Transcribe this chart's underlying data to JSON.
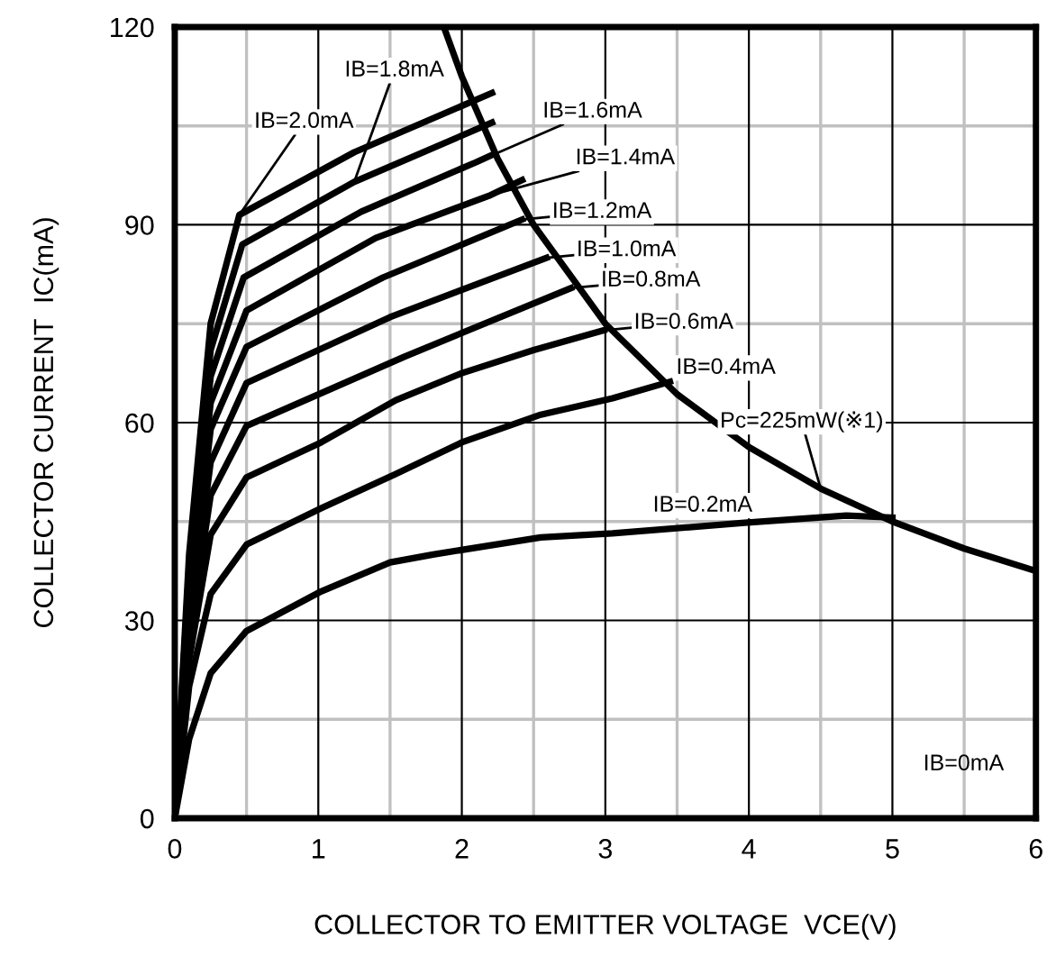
{
  "chart_data": {
    "type": "line",
    "xlabel": "COLLECTOR TO EMITTER VOLTAGE  VCE(V)",
    "ylabel": "COLLECTOR CURRENT  IC(mA)",
    "xlim": [
      0,
      6
    ],
    "xticks": [
      0,
      1,
      2,
      3,
      4,
      5,
      6
    ],
    "ylim": [
      0,
      120
    ],
    "yticks": [
      0,
      30,
      60,
      90,
      120
    ],
    "annotations": [
      "IB=0mA"
    ],
    "grid": true,
    "legend": false,
    "marker": "none",
    "line_style": "solid",
    "series": [
      {
        "name": "IB=2.0mA",
        "color": "#000000",
        "x": [
          0,
          0.1,
          0.25,
          0.45,
          1.25,
          2.21
        ],
        "values": [
          0,
          40,
          75,
          91.5,
          101,
          110
        ]
      },
      {
        "name": "IB=1.8mA",
        "color": "#000000",
        "x": [
          0,
          0.1,
          0.25,
          0.47,
          1.25,
          2.21
        ],
        "values": [
          0,
          38,
          71,
          87,
          96.5,
          105.5
        ]
      },
      {
        "name": "IB=1.6mA",
        "color": "#000000",
        "x": [
          0,
          0.1,
          0.25,
          0.48,
          1.3,
          2.1,
          2.21
        ],
        "values": [
          0,
          36,
          67,
          82,
          92,
          99.5,
          100.6
        ]
      },
      {
        "name": "IB=1.4mA",
        "color": "#000000",
        "x": [
          0,
          0.1,
          0.25,
          0.5,
          1.4,
          2.2,
          2.42
        ],
        "values": [
          0,
          34,
          63,
          77,
          88,
          94.5,
          96.8
        ]
      },
      {
        "name": "IB=1.2mA",
        "color": "#000000",
        "x": [
          0,
          0.1,
          0.25,
          0.5,
          1.45,
          2.42
        ],
        "values": [
          0,
          31,
          59,
          71.5,
          82,
          90.8
        ]
      },
      {
        "name": "IB=1.0mA",
        "color": "#000000",
        "x": [
          0,
          0.1,
          0.25,
          0.5,
          1.5,
          2.59
        ],
        "values": [
          0,
          29,
          54,
          66,
          76,
          85
        ]
      },
      {
        "name": "IB=0.8mA",
        "color": "#000000",
        "x": [
          0,
          0.1,
          0.25,
          0.5,
          1.6,
          2.76
        ],
        "values": [
          0,
          27,
          49,
          59.5,
          70,
          80.4
        ]
      },
      {
        "name": "IB=0.6mA",
        "color": "#000000",
        "x": [
          0,
          0.1,
          0.25,
          0.5,
          1.02,
          1.54,
          2.0,
          2.5,
          2.99
        ],
        "values": [
          0,
          24,
          43,
          51.7,
          57,
          63.4,
          67.5,
          71,
          74
        ]
      },
      {
        "name": "IB=0.4mA",
        "color": "#000000",
        "x": [
          0,
          0.1,
          0.25,
          0.5,
          1.02,
          1.54,
          2.0,
          2.55,
          3.05,
          3.45
        ],
        "values": [
          0,
          20,
          34,
          41.5,
          47,
          52.2,
          57,
          61.2,
          63.7,
          66.2
        ]
      },
      {
        "name": "IB=0.2mA",
        "color": "#000000",
        "x": [
          0,
          0.1,
          0.25,
          0.5,
          1.02,
          1.5,
          1.8,
          2.55,
          3.05,
          3.97,
          4.68,
          5.0
        ],
        "values": [
          0,
          12,
          22,
          28.4,
          34.4,
          38.8,
          40,
          42.6,
          43.2,
          44.8,
          45.9,
          45.6
        ]
      },
      {
        "name": "Pc=225mW(※1)",
        "color": "#000000",
        "x": [
          1.875,
          2,
          2.25,
          2.5,
          3,
          3.5,
          4,
          4.5,
          5,
          5.5,
          6
        ],
        "values": [
          120,
          112.5,
          100,
          90,
          75,
          64.3,
          56.3,
          50,
          45,
          40.9,
          37.5
        ]
      }
    ]
  }
}
